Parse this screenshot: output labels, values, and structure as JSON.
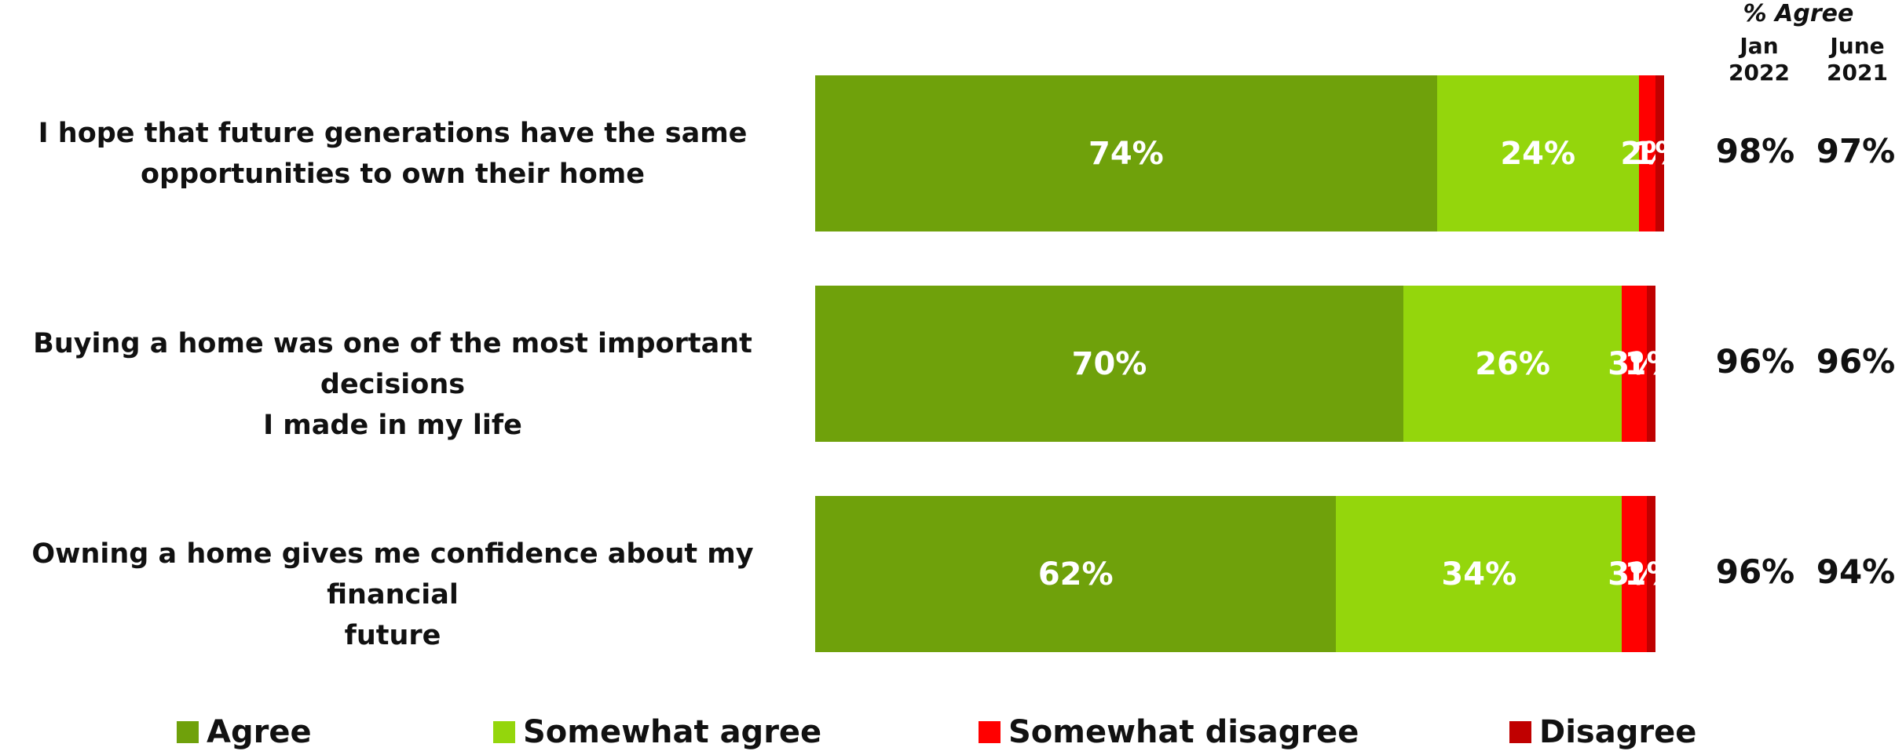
{
  "header": {
    "title": "% Agree",
    "col1": [
      "Jan",
      "2022"
    ],
    "col2": [
      "June",
      "2021"
    ]
  },
  "colors": {
    "agree": "#6fa10b",
    "somewhat_agree": "#94d60c",
    "somewhat_disagree": "#ff0000",
    "disagree": "#c00000"
  },
  "legend": [
    "Agree",
    "Somewhat agree",
    "Somewhat disagree",
    "Disagree"
  ],
  "chart_data": {
    "type": "bar",
    "orientation": "horizontal",
    "stacked": true,
    "xlim": [
      0,
      100
    ],
    "categories": [
      "I hope that future generations have the same opportunities to own their home",
      "Buying a home was one of the most important decisions I made in my life",
      "Owning a home gives me confidence about my financial future"
    ],
    "category_lines": [
      [
        "I hope that future generations have the same",
        "opportunities to own their home"
      ],
      [
        "Buying a home was one of the most important decisions",
        "I made in my life"
      ],
      [
        "Owning a home gives me confidence about my financial",
        "future"
      ]
    ],
    "series": [
      {
        "name": "Agree",
        "values": [
          74,
          70,
          62
        ],
        "labels": [
          "74%",
          "70%",
          "62%"
        ]
      },
      {
        "name": "Somewhat agree",
        "values": [
          24,
          26,
          34
        ],
        "labels": [
          "24%",
          "26%",
          "34%"
        ]
      },
      {
        "name": "Somewhat disagree",
        "values": [
          2,
          3,
          3
        ],
        "labels": [
          "2%",
          "3%",
          "3%"
        ]
      },
      {
        "name": "Disagree",
        "values": [
          1,
          1,
          1
        ],
        "labels": [
          "1%",
          "1%",
          "1%"
        ]
      }
    ],
    "agree_jan_2022": [
      "98%",
      "96%",
      "96%"
    ],
    "agree_june_2021": [
      "97%",
      "96%",
      "94%"
    ]
  }
}
